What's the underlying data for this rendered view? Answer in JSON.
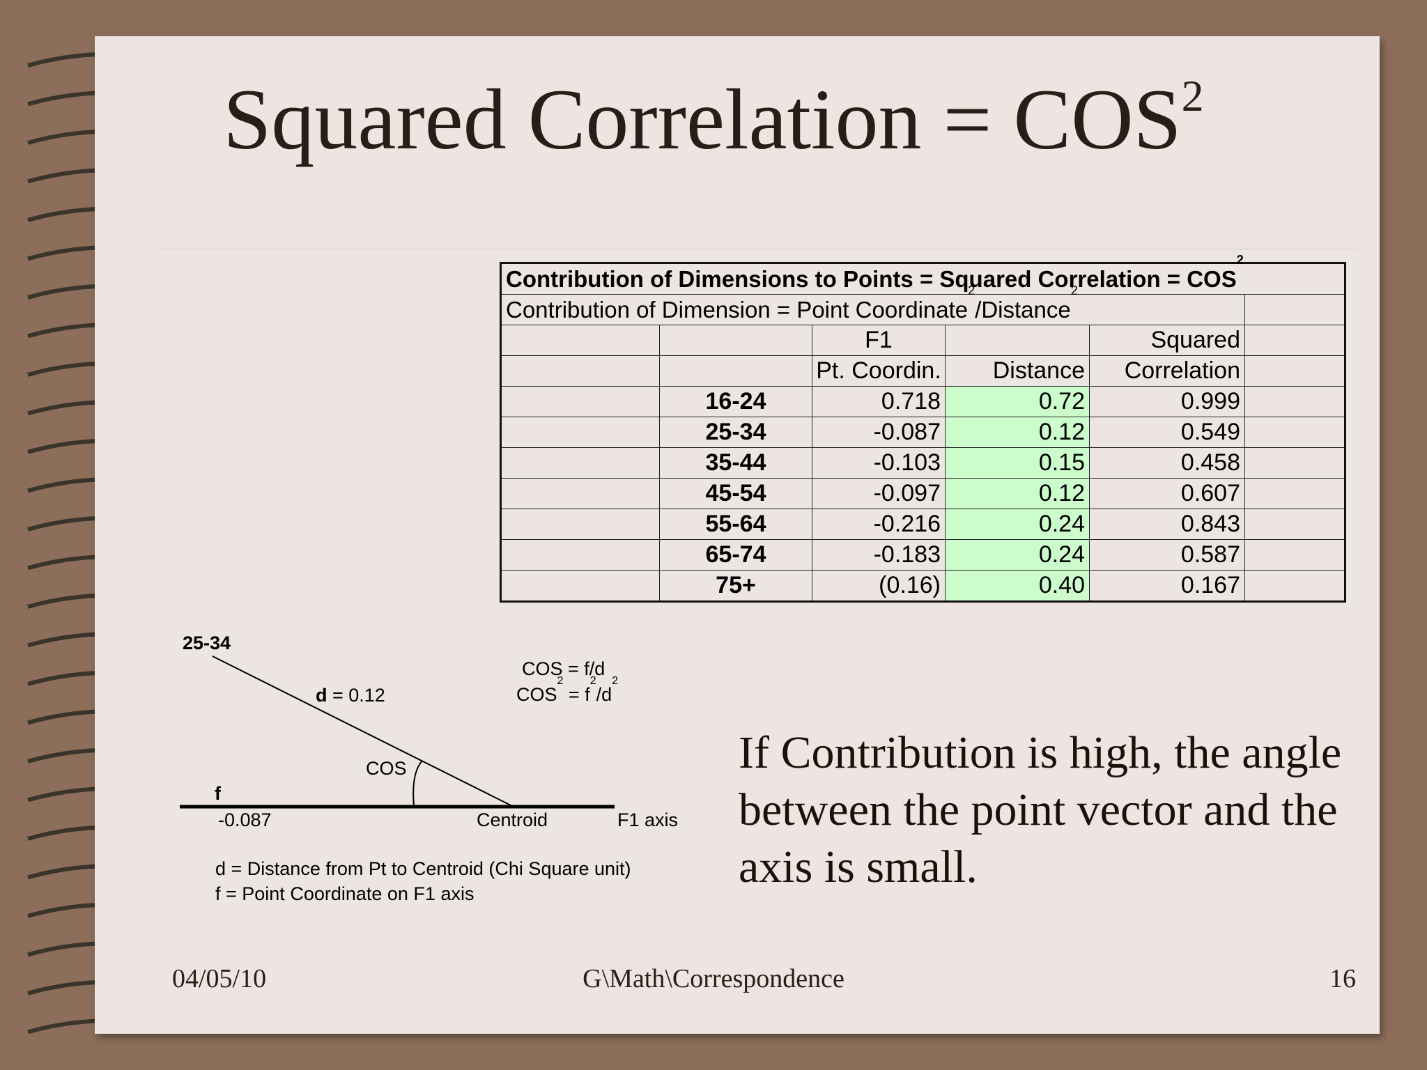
{
  "title": {
    "main": "Squared Correlation = COS",
    "superscript": "2"
  },
  "table": {
    "heading": {
      "text": "Contribution of Dimensions to Points = Squared Correlation = COS",
      "sup": "2"
    },
    "subheading": {
      "part1": "Contribution of Dimension = Point Coordinate",
      "sup1": "2",
      "part2": "/Distance",
      "sup2": "2"
    },
    "col_header_1": {
      "f1": "F1",
      "squared": "Squared"
    },
    "col_header_2": {
      "coord": "Pt. Coordin.",
      "distance": "Distance",
      "correlation": "Correlation"
    },
    "rows": [
      {
        "label": "16-24",
        "coord": "0.718",
        "distance": "0.72",
        "correlation": "0.999"
      },
      {
        "label": "25-34",
        "coord": "-0.087",
        "distance": "0.12",
        "correlation": "0.549"
      },
      {
        "label": "35-44",
        "coord": "-0.103",
        "distance": "0.15",
        "correlation": "0.458"
      },
      {
        "label": "45-54",
        "coord": "-0.097",
        "distance": "0.12",
        "correlation": "0.607"
      },
      {
        "label": "55-64",
        "coord": "-0.216",
        "distance": "0.24",
        "correlation": "0.843"
      },
      {
        "label": "65-74",
        "coord": "-0.183",
        "distance": "0.24",
        "correlation": "0.587"
      },
      {
        "label": "75+",
        "coord": "(0.16)",
        "distance": "0.40",
        "correlation": "0.167"
      }
    ]
  },
  "diagram": {
    "point_label": "25-34",
    "d_bold": "d",
    "d_value": " = 0.12",
    "cos_label": "COS",
    "f_label": "f",
    "f_value": "-0.087",
    "centroid": "Centroid",
    "axis": "F1 axis",
    "formula1": "COS = f/d",
    "formula2_a": "COS",
    "formula2_sup1": "2",
    "formula2_b": " = f",
    "formula2_sup2": "2",
    "formula2_c": "/d",
    "formula2_sup3": "2",
    "legend_d": "d = Distance from Pt to Centroid (Chi Square unit)",
    "legend_f": "f = Point Coordinate on F1 axis"
  },
  "note": "If Contribution is high, the angle between the point vector and the axis is small.",
  "footer": {
    "date": "04/05/10",
    "path": "G\\Math\\Correspondence",
    "page": "16"
  },
  "colors": {
    "background": "#8c6e5a",
    "page": "#ece5e2",
    "highlight": "#ccfccc"
  }
}
